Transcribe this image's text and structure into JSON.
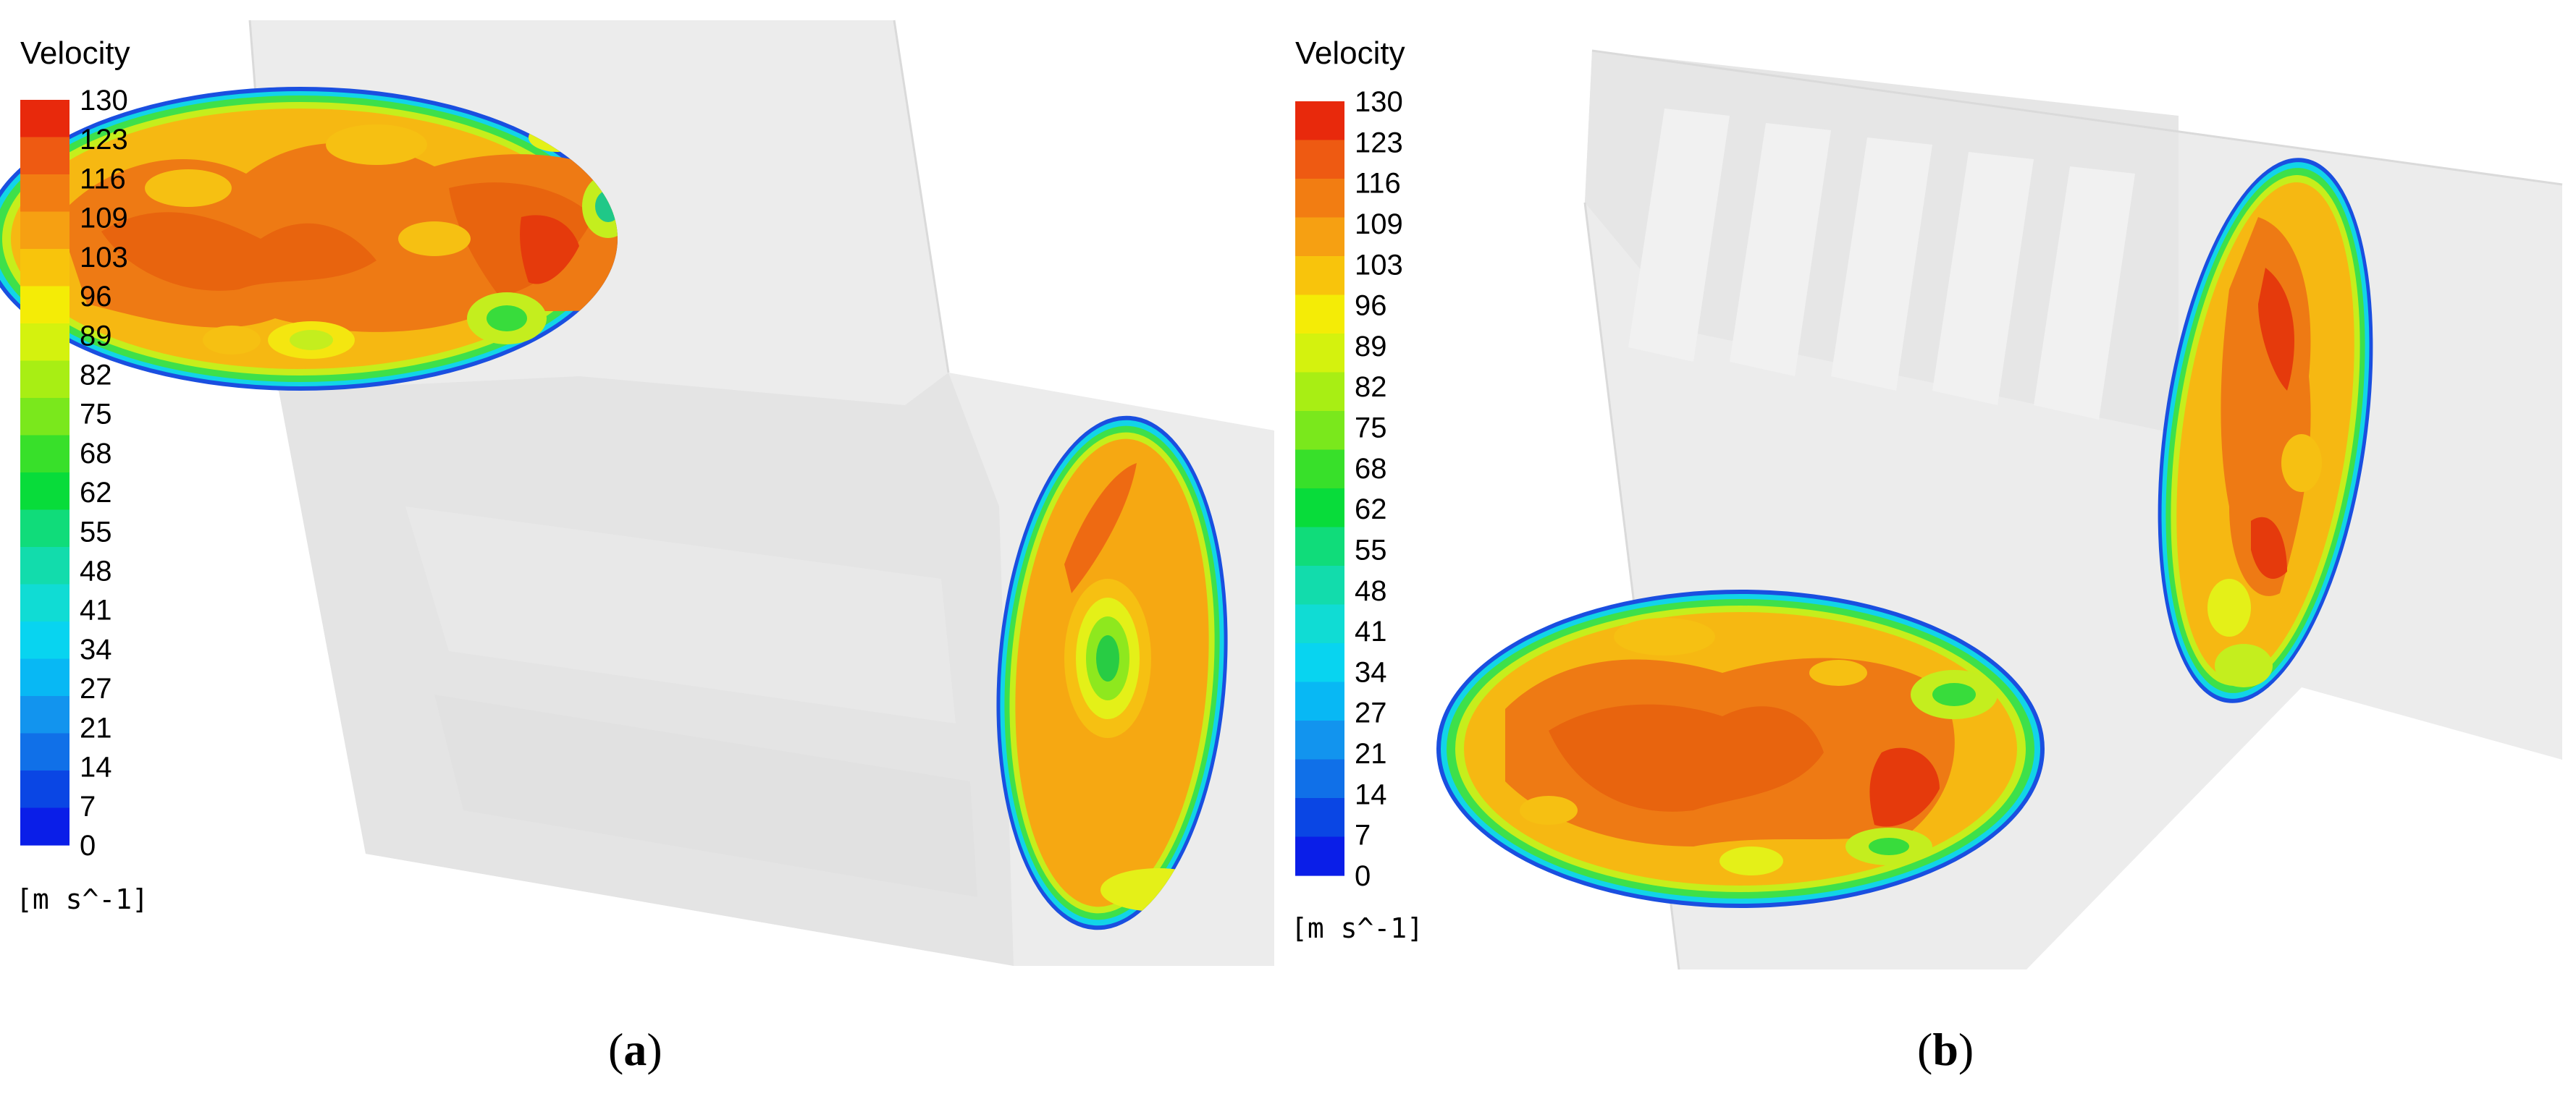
{
  "figures": [
    {
      "id": "a",
      "caption_open": "(",
      "caption_letter": "a",
      "caption_close": ")",
      "legend": {
        "title": "Velocity",
        "unit": "[m s^-1]",
        "ticks": [
          "130",
          "123",
          "116",
          "109",
          "103",
          "96",
          "89",
          "82",
          "75",
          "68",
          "62",
          "55",
          "48",
          "41",
          "34",
          "27",
          "21",
          "14",
          "7",
          "0"
        ]
      }
    },
    {
      "id": "b",
      "caption_open": "(",
      "caption_letter": "b",
      "caption_close": ")",
      "legend": {
        "title": "Velocity",
        "unit": "[m s^-1]",
        "ticks": [
          "130",
          "123",
          "116",
          "109",
          "103",
          "96",
          "89",
          "82",
          "75",
          "68",
          "62",
          "55",
          "48",
          "41",
          "34",
          "27",
          "21",
          "14",
          "7",
          "0"
        ]
      }
    }
  ],
  "colorbar_colors": [
    "#e8290c",
    "#ee5a12",
    "#f27d12",
    "#f6a012",
    "#f8c40c",
    "#f4ec06",
    "#d4f20e",
    "#a8ee14",
    "#7ae81c",
    "#38e02a",
    "#08dc3a",
    "#10dc7a",
    "#12dcac",
    "#10dcd4",
    "#08d4f0",
    "#08b8f4",
    "#1294ee",
    "#1070e8",
    "#0a46e4",
    "#0a1ee8"
  ]
}
